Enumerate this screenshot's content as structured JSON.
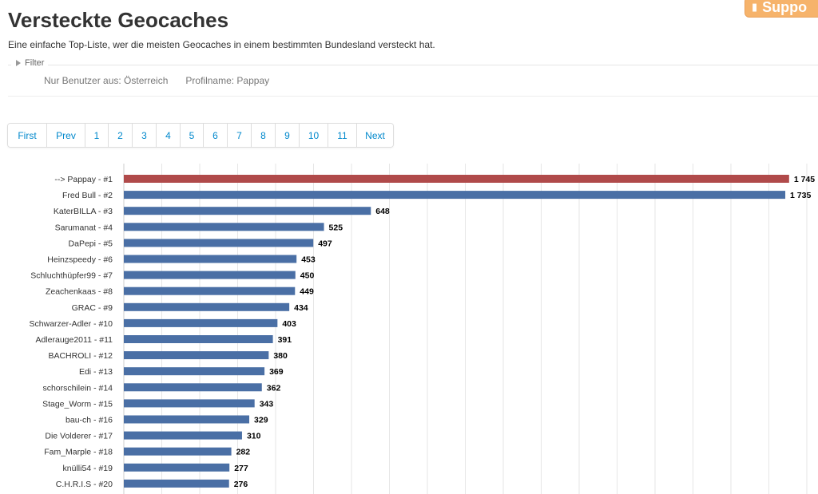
{
  "header": {
    "support_label": "Suppo",
    "title": "Versteckte Geocaches",
    "subtitle": "Eine einfache Top-Liste, wer die meisten Geocaches in einem bestimmten Bundesland versteckt hat."
  },
  "filter": {
    "legend": "Filter",
    "country_filter": "Nur Benutzer aus: Österreich",
    "profile_filter": "Profilname: Pappay"
  },
  "pagination": {
    "items": [
      "First",
      "Prev",
      "1",
      "2",
      "3",
      "4",
      "5",
      "6",
      "7",
      "8",
      "9",
      "10",
      "11",
      "Next"
    ]
  },
  "chart_data": {
    "type": "bar",
    "orientation": "horizontal",
    "highlight_color": "#b04a4a",
    "bar_color": "#4a6fa5",
    "grid": true,
    "categories": [
      "--> Pappay - #1",
      "Fred Bull - #2",
      "KaterBILLA - #3",
      "Sarumanat - #4",
      "DaPepi - #5",
      "Heinzspeedy - #6",
      "Schluchthüpfer99 - #7",
      "Zeachenkaas - #8",
      "GRAC - #9",
      "Schwarzer-Adler - #10",
      "Adlerauge2011 - #11",
      "BACHROLI - #12",
      "Edi - #13",
      "schorschilein - #14",
      "Stage_Worm - #15",
      "bau-ch - #16",
      "Die Volderer - #17",
      "Fam_Marple - #18",
      "knülli54 - #19",
      "C.H.R.I.S - #20"
    ],
    "values": [
      1745,
      1735,
      648,
      525,
      497,
      453,
      450,
      449,
      434,
      403,
      391,
      380,
      369,
      362,
      343,
      329,
      310,
      282,
      277,
      276
    ],
    "value_labels": [
      "1 745",
      "1 735",
      "648",
      "525",
      "497",
      "453",
      "450",
      "449",
      "434",
      "403",
      "391",
      "380",
      "369",
      "362",
      "343",
      "329",
      "310",
      "282",
      "277",
      "276"
    ],
    "highlight_index": 0,
    "xlim": [
      0,
      1825
    ]
  }
}
